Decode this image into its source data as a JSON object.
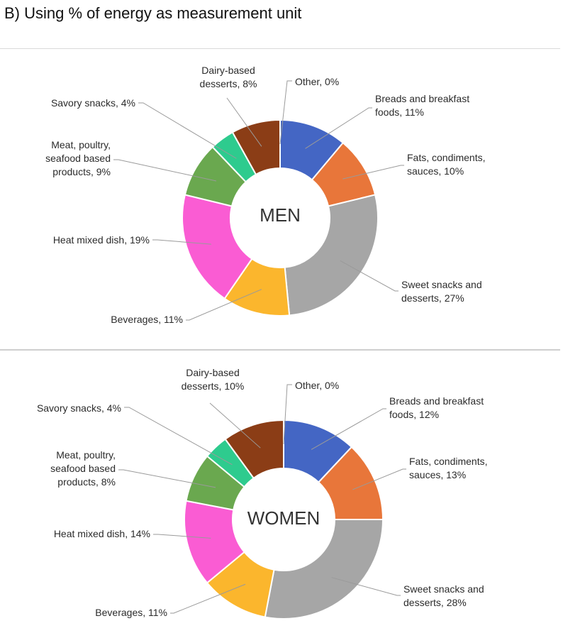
{
  "heading": "B) Using % of energy as measurement unit",
  "chart_data": [
    {
      "type": "pie",
      "variant": "donut",
      "title": "MEN",
      "unit": "%",
      "categories": [
        "Other",
        "Breads and breakfast foods",
        "Fats, condiments, sauces",
        "Sweet snacks and desserts",
        "Beverages",
        "Heat mixed dish",
        "Meat, poultry, seafood based products",
        "Savory snacks",
        "Dairy-based desserts"
      ],
      "values": [
        0,
        11,
        10,
        27,
        11,
        19,
        9,
        4,
        8
      ],
      "labels": [
        "Other, 0%",
        "Breads and breakfast\nfoods, 11%",
        "Fats, condiments,\nsauces, 10%",
        "Sweet snacks and\ndesserts, 27%",
        "Beverages, 11%",
        "Heat mixed dish, 19%",
        "Meat, poultry,\nseafood based\nproducts, 9%",
        "Savory snacks, 4%",
        "Dairy-based\ndesserts, 8%"
      ],
      "colors": [
        "#8fbf6a",
        "#4466c4",
        "#e8763a",
        "#a6a6a6",
        "#fbb62d",
        "#fa5cd3",
        "#6aa84f",
        "#2ecb8e",
        "#8b3d16"
      ]
    },
    {
      "type": "pie",
      "variant": "donut",
      "title": "WOMEN",
      "unit": "%",
      "categories": [
        "Other",
        "Breads and breakfast foods",
        "Fats, condiments, sauces",
        "Sweet snacks and desserts",
        "Beverages",
        "Heat mixed dish",
        "Meat, poultry, seafood based products",
        "Savory snacks",
        "Dairy-based desserts"
      ],
      "values": [
        0,
        12,
        13,
        28,
        11,
        14,
        8,
        4,
        10
      ],
      "labels": [
        "Other, 0%",
        "Breads and breakfast\nfoods, 12%",
        "Fats, condiments,\nsauces, 13%",
        "Sweet snacks and\ndesserts, 28%",
        "Beverages, 11%",
        "Heat mixed dish, 14%",
        "Meat, poultry,\nseafood based\nproducts, 8%",
        "Savory snacks, 4%",
        "Dairy-based\ndesserts, 10%"
      ],
      "colors": [
        "#8fbf6a",
        "#4466c4",
        "#e8763a",
        "#a6a6a6",
        "#fbb62d",
        "#fa5cd3",
        "#6aa84f",
        "#2ecb8e",
        "#8b3d16"
      ]
    }
  ]
}
